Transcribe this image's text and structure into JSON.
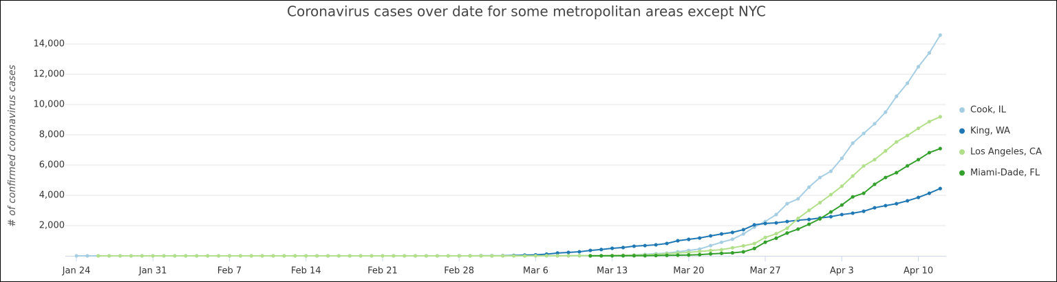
{
  "chart_data": {
    "type": "line",
    "title": "Coronavirus cases over date for some metropolitan areas except NYC",
    "y_label": "# of confirmed coronavirus cases",
    "categories": [
      "Jan 24",
      null,
      null,
      null,
      null,
      null,
      null,
      "Jan 31",
      null,
      null,
      null,
      null,
      null,
      null,
      "Feb 7",
      null,
      null,
      null,
      null,
      null,
      null,
      "Feb 14",
      null,
      null,
      null,
      null,
      null,
      null,
      "Feb 21",
      null,
      null,
      null,
      null,
      null,
      null,
      "Feb 28",
      null,
      null,
      null,
      null,
      null,
      null,
      "Mar 6",
      null,
      null,
      null,
      null,
      null,
      null,
      "Mar 13",
      null,
      null,
      null,
      null,
      null,
      null,
      "Mar 20",
      null,
      null,
      null,
      null,
      null,
      null,
      "Mar 27",
      null,
      null,
      null,
      null,
      null,
      null,
      "Apr 3",
      null,
      null,
      null,
      null,
      null,
      null,
      "Apr 10",
      null,
      null
    ],
    "ylim": [
      0,
      15000
    ],
    "yticks": [
      {
        "value": 2000,
        "label": "2,000"
      },
      {
        "value": 4000,
        "label": "4,000"
      },
      {
        "value": 6000,
        "label": "6,000"
      },
      {
        "value": 8000,
        "label": "8,000"
      },
      {
        "value": 10000,
        "label": "10,000"
      },
      {
        "value": 12000,
        "label": "12,000"
      },
      {
        "value": 14000,
        "label": "14,000"
      }
    ],
    "grid": true,
    "legend": "right",
    "series": [
      {
        "name": "Cook, IL",
        "color": "#a6cee3",
        "values": [
          1,
          1,
          1,
          1,
          1,
          1,
          2,
          2,
          2,
          2,
          2,
          2,
          2,
          2,
          2,
          2,
          2,
          2,
          2,
          2,
          2,
          2,
          2,
          2,
          2,
          2,
          2,
          2,
          2,
          2,
          2,
          2,
          2,
          2,
          2,
          2,
          2,
          2,
          2,
          2,
          2,
          4,
          5,
          6,
          6,
          7,
          7,
          8,
          12,
          20,
          40,
          60,
          100,
          140,
          180,
          270,
          360,
          450,
          680,
          900,
          1100,
          1450,
          1900,
          2270,
          2730,
          3450,
          3770,
          4540,
          5180,
          5590,
          6450,
          7450,
          8090,
          8730,
          9500,
          10545,
          11410,
          12500,
          13410,
          14590
        ]
      },
      {
        "name": "King, WA",
        "color": "#1f78b4",
        "values": [
          null,
          null,
          null,
          null,
          null,
          null,
          null,
          null,
          null,
          null,
          null,
          null,
          null,
          null,
          null,
          null,
          null,
          null,
          null,
          null,
          null,
          null,
          null,
          null,
          null,
          null,
          null,
          null,
          null,
          null,
          null,
          null,
          null,
          null,
          null,
          1,
          2,
          4,
          6,
          10,
          31,
          51,
          71,
          116,
          190,
          230,
          270,
          360,
          420,
          500,
          550,
          640,
          680,
          730,
          820,
          1000,
          1090,
          1180,
          1320,
          1450,
          1550,
          1730,
          2050,
          2140,
          2180,
          2270,
          2360,
          2410,
          2500,
          2590,
          2730,
          2820,
          2950,
          3180,
          3320,
          3450,
          3640,
          3860,
          4140,
          4450
        ]
      },
      {
        "name": "Los Angeles, CA",
        "color": "#b2df8a",
        "values": [
          null,
          null,
          1,
          1,
          1,
          1,
          1,
          1,
          1,
          1,
          1,
          1,
          1,
          1,
          1,
          1,
          1,
          1,
          1,
          1,
          1,
          1,
          1,
          1,
          1,
          1,
          1,
          1,
          1,
          1,
          1,
          1,
          1,
          1,
          1,
          1,
          1,
          1,
          1,
          1,
          1,
          1,
          7,
          11,
          13,
          14,
          17,
          19,
          20,
          30,
          40,
          53,
          69,
          94,
          144,
          190,
          231,
          292,
          351,
          409,
          536,
          662,
          812,
          1216,
          1465,
          1829,
          2474,
          3011,
          3518,
          4045,
          4605,
          5277,
          5940,
          6360,
          6936,
          7530,
          7955,
          8430,
          8873,
          9192
        ]
      },
      {
        "name": "Miami-Dade, FL",
        "color": "#33a02c",
        "values": [
          null,
          null,
          null,
          null,
          null,
          null,
          null,
          null,
          null,
          null,
          null,
          null,
          null,
          null,
          null,
          null,
          null,
          null,
          null,
          null,
          null,
          null,
          null,
          null,
          null,
          null,
          null,
          null,
          null,
          null,
          null,
          null,
          null,
          null,
          null,
          null,
          null,
          null,
          null,
          null,
          null,
          null,
          null,
          null,
          null,
          null,
          null,
          1,
          2,
          3,
          6,
          9,
          12,
          20,
          33,
          44,
          57,
          78,
          130,
          166,
          200,
          266,
          487,
          904,
          1170,
          1510,
          1770,
          2090,
          2450,
          2900,
          3360,
          3900,
          4140,
          4730,
          5180,
          5500,
          5950,
          6360,
          6820,
          7090
        ]
      }
    ]
  }
}
